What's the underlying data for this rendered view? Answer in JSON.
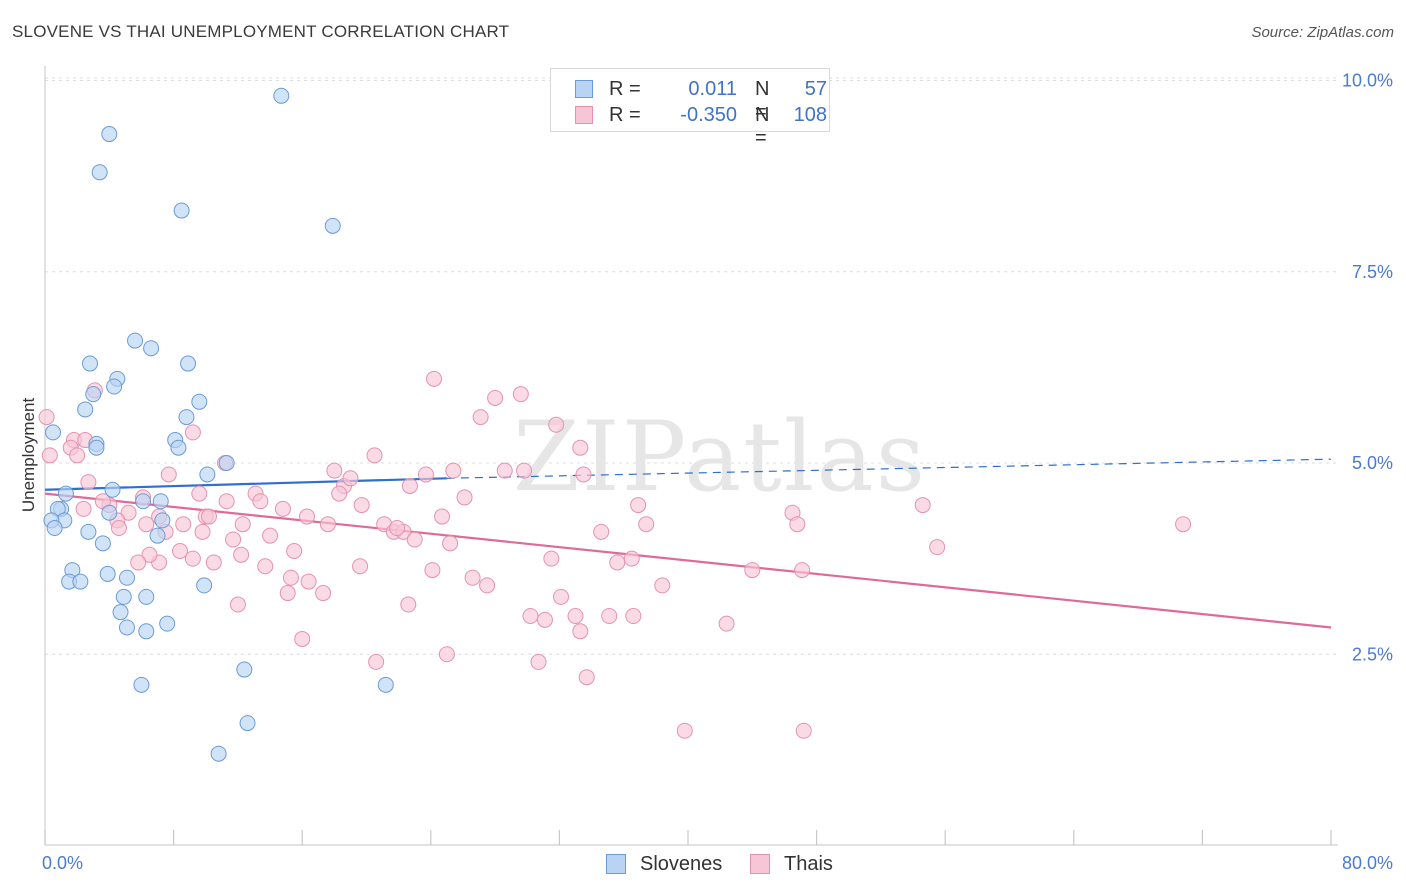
{
  "title": "SLOVENE VS THAI UNEMPLOYMENT CORRELATION CHART",
  "source": "Source: ZipAtlas.com",
  "watermark": "ZIPatlas",
  "legend": {
    "rows": [
      {
        "r_label": "R =",
        "r_value": "0.011",
        "n_label": "N =",
        "n_value": "57"
      },
      {
        "r_label": "R =",
        "r_value": "-0.350",
        "n_label": "N =",
        "n_value": "108"
      }
    ]
  },
  "bottom_legend": [
    "Slovenes",
    "Thais"
  ],
  "colors": {
    "slovenes_fill": "#b9d4f3",
    "slovenes_stroke": "#6b9bd6",
    "slovenes_line": "#2f6fcf",
    "thais_fill": "#f7c6d6",
    "thais_stroke": "#e592b0",
    "thais_line": "#e06a97",
    "tick_text": "#4a7bd0",
    "grid": "#dcdcdc"
  },
  "chart_data": {
    "type": "scatter",
    "title": "SLOVENE VS THAI UNEMPLOYMENT CORRELATION CHART",
    "xlabel": "",
    "ylabel": "Unemployment",
    "xlim": [
      0,
      80
    ],
    "ylim": [
      0,
      10.5
    ],
    "x_tick_labels": [
      "0.0%",
      "80.0%"
    ],
    "y_ticks": [
      2.5,
      5.0,
      7.5,
      10.0
    ],
    "y_tick_labels": [
      "2.5%",
      "5.0%",
      "7.5%",
      "10.0%"
    ],
    "grid": true,
    "legend_placement": "top-center",
    "series": [
      {
        "name": "Slovenes",
        "r": 0.011,
        "n": 57,
        "trend": {
          "x": [
            0,
            25
          ],
          "y": [
            4.65,
            4.8
          ],
          "dashed_extension_to": [
            80,
            5.05
          ]
        },
        "points": [
          [
            14.7,
            9.8
          ],
          [
            4.0,
            9.3
          ],
          [
            3.4,
            8.8
          ],
          [
            8.5,
            8.3
          ],
          [
            17.9,
            8.1
          ],
          [
            5.6,
            6.6
          ],
          [
            6.6,
            6.5
          ],
          [
            2.8,
            6.3
          ],
          [
            8.9,
            6.3
          ],
          [
            4.5,
            6.1
          ],
          [
            4.3,
            6.0
          ],
          [
            3.0,
            5.9
          ],
          [
            9.6,
            5.8
          ],
          [
            2.5,
            5.7
          ],
          [
            8.8,
            5.6
          ],
          [
            0.5,
            5.4
          ],
          [
            8.1,
            5.3
          ],
          [
            3.2,
            5.25
          ],
          [
            8.3,
            5.2
          ],
          [
            3.2,
            5.2
          ],
          [
            11.3,
            5.0
          ],
          [
            10.1,
            4.85
          ],
          [
            4.2,
            4.65
          ],
          [
            1.3,
            4.6
          ],
          [
            6.1,
            4.5
          ],
          [
            7.2,
            4.5
          ],
          [
            1.0,
            4.4
          ],
          [
            0.8,
            4.4
          ],
          [
            4.0,
            4.35
          ],
          [
            1.2,
            4.25
          ],
          [
            0.4,
            4.25
          ],
          [
            7.3,
            4.25
          ],
          [
            0.6,
            4.15
          ],
          [
            2.7,
            4.1
          ],
          [
            7.0,
            4.05
          ],
          [
            3.6,
            3.95
          ],
          [
            1.7,
            3.6
          ],
          [
            3.9,
            3.55
          ],
          [
            1.5,
            3.45
          ],
          [
            2.2,
            3.45
          ],
          [
            5.1,
            3.5
          ],
          [
            9.9,
            3.4
          ],
          [
            6.3,
            3.25
          ],
          [
            4.9,
            3.25
          ],
          [
            4.7,
            3.05
          ],
          [
            7.6,
            2.9
          ],
          [
            5.1,
            2.85
          ],
          [
            6.3,
            2.8
          ],
          [
            12.4,
            2.3
          ],
          [
            6.0,
            2.1
          ],
          [
            21.2,
            2.1
          ],
          [
            12.6,
            1.6
          ],
          [
            10.8,
            1.2
          ]
        ]
      },
      {
        "name": "Thais",
        "r": -0.35,
        "n": 108,
        "trend": {
          "x": [
            0,
            80
          ],
          "y": [
            4.6,
            2.85
          ]
        },
        "points": [
          [
            0.1,
            5.6
          ],
          [
            0.3,
            5.1
          ],
          [
            1.8,
            5.3
          ],
          [
            3.1,
            5.95
          ],
          [
            2.5,
            5.3
          ],
          [
            1.6,
            5.2
          ],
          [
            2.0,
            5.1
          ],
          [
            11.2,
            5.0
          ],
          [
            9.2,
            5.4
          ],
          [
            7.7,
            4.85
          ],
          [
            2.7,
            4.75
          ],
          [
            4.0,
            4.45
          ],
          [
            6.1,
            4.55
          ],
          [
            3.6,
            4.5
          ],
          [
            2.4,
            4.4
          ],
          [
            5.2,
            4.35
          ],
          [
            4.5,
            4.25
          ],
          [
            7.1,
            4.3
          ],
          [
            8.6,
            4.2
          ],
          [
            10.0,
            4.3
          ],
          [
            9.6,
            4.6
          ],
          [
            11.3,
            4.5
          ],
          [
            13.1,
            4.6
          ],
          [
            14.8,
            4.4
          ],
          [
            16.3,
            4.3
          ],
          [
            12.3,
            4.2
          ],
          [
            6.3,
            4.2
          ],
          [
            4.6,
            4.15
          ],
          [
            7.5,
            4.1
          ],
          [
            8.4,
            3.85
          ],
          [
            7.1,
            3.7
          ],
          [
            6.5,
            3.8
          ],
          [
            9.2,
            3.75
          ],
          [
            10.5,
            3.7
          ],
          [
            12.2,
            3.8
          ],
          [
            14.0,
            4.05
          ],
          [
            15.5,
            3.85
          ],
          [
            13.7,
            3.65
          ],
          [
            12.0,
            3.15
          ],
          [
            15.3,
            3.5
          ],
          [
            16.4,
            3.45
          ],
          [
            15.1,
            3.3
          ],
          [
            16.0,
            2.7
          ],
          [
            17.6,
            4.2
          ],
          [
            18.6,
            4.7
          ],
          [
            18.0,
            4.9
          ],
          [
            19.7,
            4.45
          ],
          [
            19.0,
            4.8
          ],
          [
            20.5,
            5.1
          ],
          [
            21.1,
            4.2
          ],
          [
            21.7,
            4.1
          ],
          [
            22.3,
            4.1
          ],
          [
            23.0,
            4.0
          ],
          [
            22.7,
            4.7
          ],
          [
            23.7,
            4.85
          ],
          [
            24.7,
            4.3
          ],
          [
            25.4,
            4.9
          ],
          [
            26.1,
            4.55
          ],
          [
            25.2,
            3.95
          ],
          [
            24.1,
            3.6
          ],
          [
            22.6,
            3.15
          ],
          [
            19.6,
            3.65
          ],
          [
            20.6,
            2.4
          ],
          [
            25.0,
            2.5
          ],
          [
            26.6,
            3.5
          ],
          [
            27.5,
            3.4
          ],
          [
            28.6,
            4.9
          ],
          [
            28.0,
            5.85
          ],
          [
            29.6,
            5.9
          ],
          [
            29.8,
            4.9
          ],
          [
            27.1,
            5.6
          ],
          [
            24.2,
            6.1
          ],
          [
            31.8,
            5.5
          ],
          [
            33.3,
            5.2
          ],
          [
            33.5,
            4.85
          ],
          [
            31.5,
            3.75
          ],
          [
            30.2,
            3.0
          ],
          [
            31.1,
            2.95
          ],
          [
            32.1,
            3.25
          ],
          [
            30.7,
            2.4
          ],
          [
            33.0,
            3.0
          ],
          [
            33.3,
            2.8
          ],
          [
            33.7,
            2.2
          ],
          [
            35.1,
            3.0
          ],
          [
            35.6,
            3.7
          ],
          [
            36.5,
            3.75
          ],
          [
            36.6,
            3.0
          ],
          [
            36.9,
            4.45
          ],
          [
            37.4,
            4.2
          ],
          [
            38.4,
            3.4
          ],
          [
            42.4,
            2.9
          ],
          [
            44.0,
            3.6
          ],
          [
            39.8,
            1.5
          ],
          [
            46.5,
            4.35
          ],
          [
            46.8,
            4.2
          ],
          [
            47.1,
            3.6
          ],
          [
            47.2,
            1.5
          ],
          [
            54.6,
            4.45
          ],
          [
            55.5,
            3.9
          ],
          [
            70.8,
            4.2
          ],
          [
            34.6,
            4.1
          ],
          [
            21.9,
            4.15
          ],
          [
            10.2,
            4.3
          ],
          [
            13.4,
            4.5
          ],
          [
            5.8,
            3.7
          ],
          [
            17.3,
            3.3
          ],
          [
            9.8,
            4.1
          ],
          [
            11.7,
            4.0
          ],
          [
            18.3,
            4.6
          ]
        ]
      }
    ]
  }
}
